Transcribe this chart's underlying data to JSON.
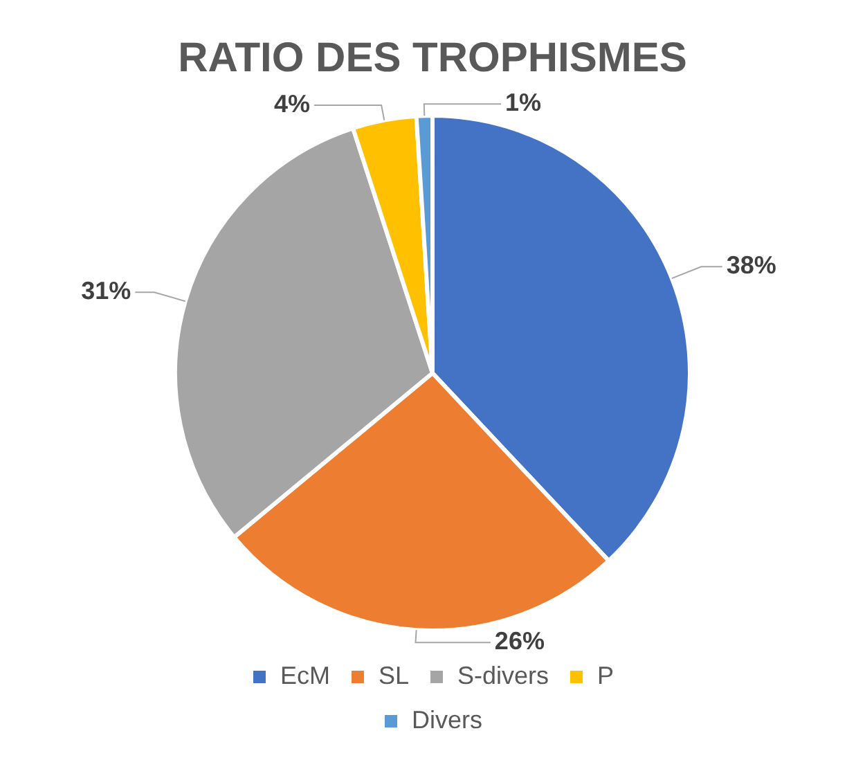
{
  "chart_data": {
    "type": "pie",
    "title": "RATIO DES TROPHISMES",
    "categories": [
      "EcM",
      "SL",
      "S-divers",
      "P",
      "Divers"
    ],
    "values": [
      38,
      26,
      31,
      4,
      1
    ],
    "colors": [
      "#4472c4",
      "#ed7d31",
      "#a5a5a5",
      "#ffc000",
      "#5b9bd5"
    ],
    "value_labels": [
      "38%",
      "26%",
      "31%",
      "4%",
      "1%"
    ],
    "legend": "bottom"
  }
}
